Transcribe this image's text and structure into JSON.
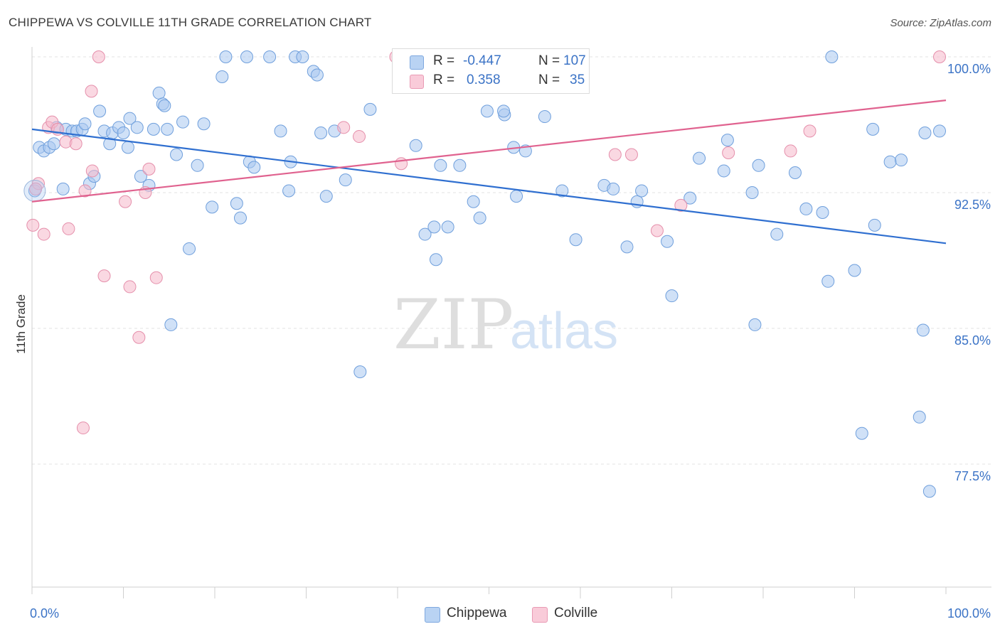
{
  "header": {
    "title": "CHIPPEWA VS COLVILLE 11TH GRADE CORRELATION CHART",
    "source": "Source: ZipAtlas.com"
  },
  "watermark": {
    "zip": "ZIP",
    "atlas": "atlas"
  },
  "legend": {
    "rows": [
      {
        "r_label": "R =",
        "r_value": "-0.447",
        "n_label": "N =",
        "n_value": "107",
        "color": "#a9c8f0"
      },
      {
        "r_label": "R =",
        "r_value": "0.358",
        "n_label": "N =",
        "n_value": "35",
        "color": "#f5b8cb"
      }
    ]
  },
  "bottom_legend": [
    {
      "label": "Chippewa",
      "color": "#a9c8f0"
    },
    {
      "label": "Colville",
      "color": "#f5b8cb"
    }
  ],
  "chart_data": {
    "type": "scatter",
    "title": "CHIPPEWA VS COLVILLE 11TH GRADE CORRELATION CHART",
    "xlabel": "",
    "ylabel": "11th Grade",
    "xlim": [
      0,
      100
    ],
    "ylim": [
      71.0,
      101.5
    ],
    "x_tick_labels": [
      {
        "value": 0,
        "label": "0.0%"
      },
      {
        "value": 100,
        "label": "100.0%"
      }
    ],
    "y_tick_labels": [
      {
        "value": 100.0,
        "label": "100.0%"
      },
      {
        "value": 92.5,
        "label": "92.5%"
      },
      {
        "value": 85.0,
        "label": "85.0%"
      },
      {
        "value": 77.5,
        "label": "77.5%"
      }
    ],
    "grid": true,
    "legend_position": "top-center",
    "series": [
      {
        "name": "Chippewa",
        "color": "#a9c8f0",
        "stroke": "#6f9fdc",
        "line_color": "#2f6fd0",
        "trend": {
          "x": [
            0,
            100
          ],
          "y": [
            96.0,
            89.7
          ]
        },
        "points": [
          [
            0.3,
            92.6
          ],
          [
            0.8,
            95.0
          ],
          [
            1.3,
            94.8
          ],
          [
            1.9,
            95.0
          ],
          [
            2.4,
            95.2
          ],
          [
            2.7,
            96.1
          ],
          [
            3.4,
            92.7
          ],
          [
            3.7,
            96.0
          ],
          [
            4.4,
            95.9
          ],
          [
            4.9,
            95.9
          ],
          [
            5.5,
            96.0
          ],
          [
            5.8,
            96.3
          ],
          [
            6.3,
            93.0
          ],
          [
            6.8,
            93.4
          ],
          [
            7.4,
            97.0
          ],
          [
            7.9,
            95.9
          ],
          [
            8.5,
            95.2
          ],
          [
            8.8,
            95.8
          ],
          [
            9.5,
            96.1
          ],
          [
            10.0,
            95.8
          ],
          [
            10.5,
            95.0
          ],
          [
            10.7,
            96.6
          ],
          [
            11.5,
            96.1
          ],
          [
            11.9,
            93.4
          ],
          [
            12.8,
            92.9
          ],
          [
            13.3,
            96.0
          ],
          [
            13.9,
            98.0
          ],
          [
            14.3,
            97.4
          ],
          [
            14.5,
            97.3
          ],
          [
            14.8,
            96.0
          ],
          [
            15.2,
            85.2
          ],
          [
            15.8,
            94.6
          ],
          [
            16.5,
            96.4
          ],
          [
            17.2,
            89.4
          ],
          [
            18.1,
            94.0
          ],
          [
            18.8,
            96.3
          ],
          [
            19.7,
            91.7
          ],
          [
            20.8,
            98.9
          ],
          [
            21.2,
            100.0
          ],
          [
            22.4,
            91.9
          ],
          [
            22.8,
            91.1
          ],
          [
            23.5,
            100.0
          ],
          [
            23.8,
            94.2
          ],
          [
            24.3,
            93.9
          ],
          [
            26.0,
            100.0
          ],
          [
            27.2,
            95.9
          ],
          [
            28.1,
            92.6
          ],
          [
            28.3,
            94.2
          ],
          [
            28.8,
            100.0
          ],
          [
            29.6,
            100.0
          ],
          [
            30.8,
            99.2
          ],
          [
            31.2,
            99.0
          ],
          [
            31.6,
            95.8
          ],
          [
            32.2,
            92.3
          ],
          [
            33.1,
            95.9
          ],
          [
            34.3,
            93.2
          ],
          [
            35.9,
            82.6
          ],
          [
            37.0,
            97.1
          ],
          [
            42.0,
            95.1
          ],
          [
            43.0,
            90.2
          ],
          [
            44.0,
            90.6
          ],
          [
            44.2,
            88.8
          ],
          [
            44.7,
            94.0
          ],
          [
            45.5,
            90.6
          ],
          [
            46.8,
            94.0
          ],
          [
            48.3,
            92.0
          ],
          [
            49.0,
            91.1
          ],
          [
            49.8,
            97.0
          ],
          [
            51.7,
            96.8
          ],
          [
            52.7,
            95.0
          ],
          [
            53.0,
            92.3
          ],
          [
            54.0,
            94.8
          ],
          [
            56.1,
            96.7
          ],
          [
            58.0,
            92.6
          ],
          [
            59.5,
            89.9
          ],
          [
            62.6,
            92.9
          ],
          [
            63.6,
            92.7
          ],
          [
            65.1,
            89.5
          ],
          [
            66.2,
            92.0
          ],
          [
            66.7,
            92.6
          ],
          [
            69.5,
            89.8
          ],
          [
            70.0,
            86.8
          ],
          [
            72.0,
            92.2
          ],
          [
            73.0,
            94.4
          ],
          [
            75.7,
            93.7
          ],
          [
            76.1,
            95.4
          ],
          [
            78.8,
            92.5
          ],
          [
            79.1,
            85.2
          ],
          [
            79.5,
            94.0
          ],
          [
            81.5,
            90.2
          ],
          [
            83.5,
            93.6
          ],
          [
            84.7,
            91.6
          ],
          [
            86.5,
            91.4
          ],
          [
            87.1,
            87.6
          ],
          [
            87.5,
            100.0
          ],
          [
            90.0,
            88.2
          ],
          [
            90.8,
            79.2
          ],
          [
            92.0,
            96.0
          ],
          [
            92.2,
            90.7
          ],
          [
            93.9,
            94.2
          ],
          [
            95.1,
            94.3
          ],
          [
            97.1,
            80.1
          ],
          [
            97.5,
            84.9
          ],
          [
            97.7,
            95.8
          ],
          [
            98.2,
            76.0
          ],
          [
            99.3,
            95.9
          ],
          [
            51.6,
            97.0
          ]
        ]
      },
      {
        "name": "Colville",
        "color": "#f5b8cb",
        "stroke": "#e58fab",
        "line_color": "#e0628f",
        "trend": {
          "x": [
            0,
            100
          ],
          "y": [
            92.0,
            97.6
          ]
        },
        "points": [
          [
            0.1,
            90.7
          ],
          [
            0.7,
            93.0
          ],
          [
            1.3,
            90.2
          ],
          [
            1.8,
            96.1
          ],
          [
            2.2,
            96.4
          ],
          [
            3.7,
            95.3
          ],
          [
            4.0,
            90.5
          ],
          [
            4.8,
            95.2
          ],
          [
            5.6,
            79.5
          ],
          [
            5.8,
            92.6
          ],
          [
            6.5,
            98.1
          ],
          [
            6.6,
            93.7
          ],
          [
            7.3,
            100.0
          ],
          [
            7.9,
            87.9
          ],
          [
            10.2,
            92.0
          ],
          [
            10.7,
            87.3
          ],
          [
            11.7,
            84.5
          ],
          [
            12.4,
            92.5
          ],
          [
            12.8,
            93.8
          ],
          [
            13.6,
            87.8
          ],
          [
            34.1,
            96.1
          ],
          [
            35.8,
            95.6
          ],
          [
            40.4,
            94.1
          ],
          [
            39.8,
            100.0
          ],
          [
            53.5,
            100.0
          ],
          [
            63.8,
            94.6
          ],
          [
            65.6,
            94.6
          ],
          [
            68.4,
            90.4
          ],
          [
            71.0,
            91.8
          ],
          [
            76.2,
            94.7
          ],
          [
            83.0,
            94.8
          ],
          [
            85.1,
            95.9
          ],
          [
            99.3,
            100.0
          ],
          [
            0.4,
            92.7
          ],
          [
            2.8,
            96.0
          ]
        ]
      }
    ]
  }
}
